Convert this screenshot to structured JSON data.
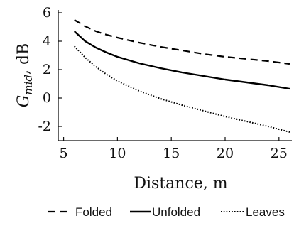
{
  "chart_data": {
    "type": "line",
    "xlabel": "Distance, m",
    "ylabel_main": "G",
    "ylabel_sub": "mid",
    "ylabel_unit": ", dB",
    "xlim": [
      4.5,
      26.2
    ],
    "ylim": [
      -3,
      6.2
    ],
    "xticks": [
      5,
      10,
      15,
      20,
      25
    ],
    "yticks": [
      6,
      4,
      2,
      0,
      -2
    ],
    "grid": false,
    "legend_position": "bottom",
    "x": [
      6,
      7,
      8,
      9,
      10,
      12,
      14,
      16,
      18,
      20,
      22,
      24,
      26
    ],
    "series": [
      {
        "name": "Folded",
        "style": "dashed",
        "values": [
          5.5,
          5.05,
          4.7,
          4.45,
          4.25,
          3.9,
          3.6,
          3.35,
          3.1,
          2.9,
          2.75,
          2.6,
          2.4
        ]
      },
      {
        "name": "Unfolded",
        "style": "solid",
        "values": [
          4.7,
          4.0,
          3.55,
          3.2,
          2.9,
          2.45,
          2.1,
          1.8,
          1.55,
          1.3,
          1.1,
          0.9,
          0.65
        ]
      },
      {
        "name": "Leaves",
        "style": "dotted",
        "values": [
          3.65,
          2.85,
          2.2,
          1.65,
          1.2,
          0.5,
          -0.05,
          -0.5,
          -0.9,
          -1.3,
          -1.65,
          -2.0,
          -2.4
        ]
      }
    ]
  }
}
